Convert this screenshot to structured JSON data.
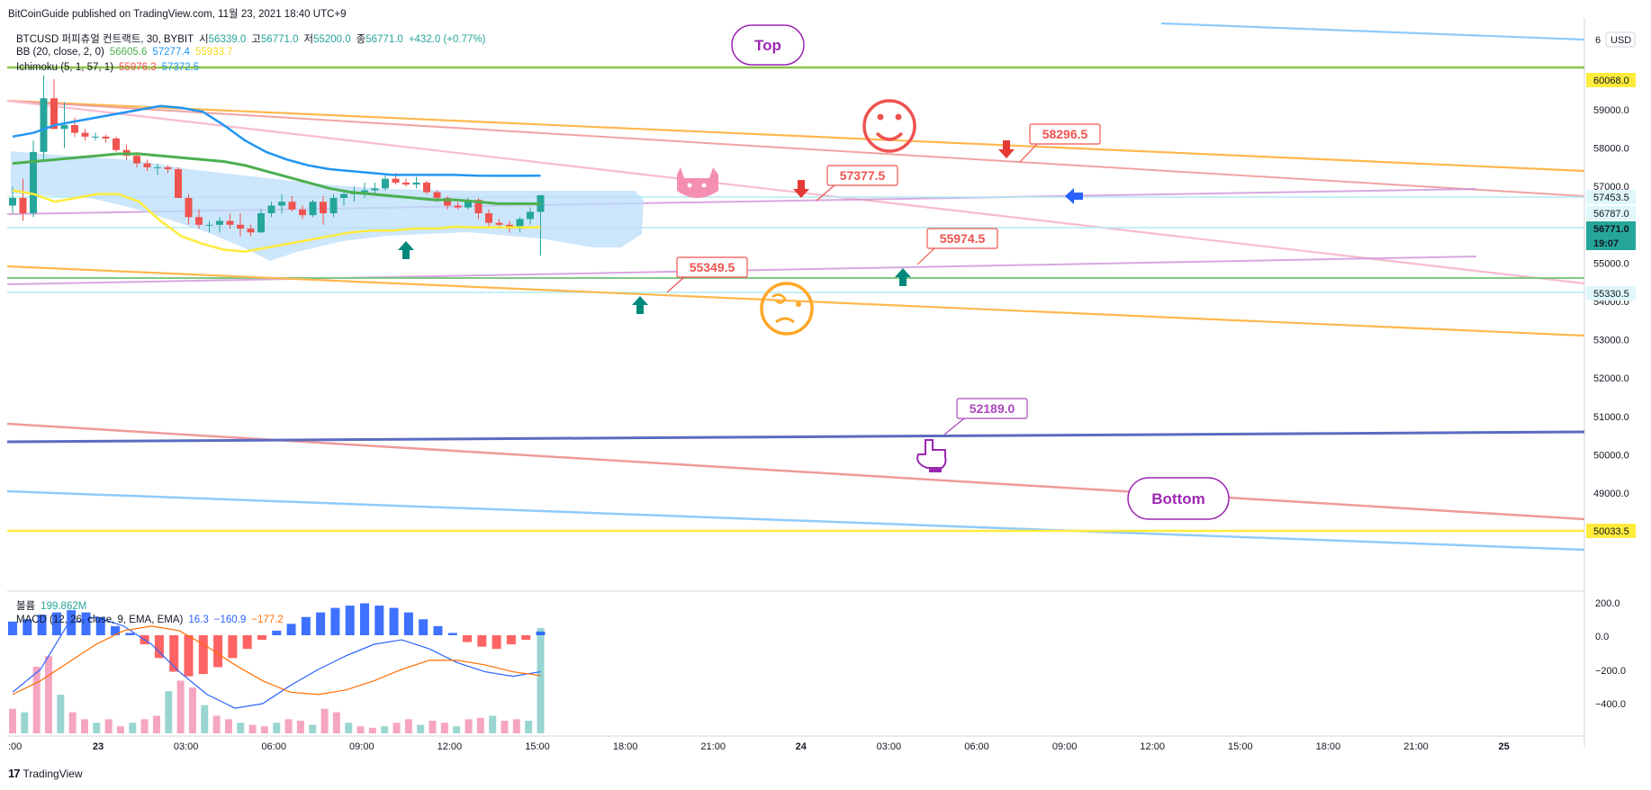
{
  "header": {
    "published": "BitCoinGuide published on TradingView.com, 11월 23, 2021 18:40 UTC+9",
    "symbol_line": "BTCUSD 퍼피츄얼 컨트랙트, 30, BYBIT",
    "ohlc": {
      "open_label": "시",
      "open": "56339.0",
      "high_label": "고",
      "high": "56771.0",
      "low_label": "저",
      "low": "55200.0",
      "close_label": "종",
      "close": "56771.0",
      "change": "+432.0 (+0.77%)"
    },
    "bb": {
      "label": "BB (20, close, 2, 0)",
      "basis": "56605.6",
      "upper": "57277.4",
      "lower": "55933.7"
    },
    "ichimoku": {
      "label": "Ichimoku (5, 1, 57, 1)",
      "v1": "55976.3",
      "v2": "57372.5"
    },
    "volume": {
      "label": "볼륨",
      "value": "199.862M"
    },
    "macd": {
      "label": "MACD (12, 26, close, 9, EMA, EMA)",
      "v1": "16.3",
      "v2": "−160.9",
      "v3": "−177.2"
    }
  },
  "currency": "USD",
  "currency_prefix": "6",
  "price_axis": {
    "ticks": [
      "59000.0",
      "58000.0",
      "57000.0",
      "56000.0",
      "55000.0",
      "54000.0",
      "53000.0",
      "52000.0",
      "51000.0",
      "50000.0",
      "49000.0"
    ],
    "tags": [
      {
        "text": "60068.0",
        "bg": "#ffeb3b",
        "fg": "#131722"
      },
      {
        "text": "57453.5",
        "bg": "#e0f7fa",
        "fg": "#131722"
      },
      {
        "text": "56787.0",
        "bg": "#e0f7fa",
        "fg": "#131722"
      },
      {
        "text": "56771.0",
        "bg": "#26a69a",
        "fg": "#ffffff"
      },
      {
        "text": "19:07",
        "bg": "#26a69a",
        "fg": "#ffffff"
      },
      {
        "text": "55330.5",
        "bg": "#e0f7fa",
        "fg": "#131722"
      },
      {
        "text": "50033.5",
        "bg": "#ffeb3b",
        "fg": "#131722"
      }
    ]
  },
  "macd_axis": {
    "ticks": [
      "200.0",
      "0.0",
      "−200.0",
      "−400.0"
    ]
  },
  "time_axis": {
    "ticks": [
      ":00",
      "23",
      "03:00",
      "06:00",
      "09:00",
      "12:00",
      "15:00",
      "18:00",
      "21:00",
      "24",
      "03:00",
      "06:00",
      "09:00",
      "12:00",
      "15:00",
      "18:00",
      "21:00",
      "25"
    ]
  },
  "callouts": {
    "top": "Top",
    "bottom": "Bottom",
    "labels": [
      "58296.5",
      "57377.5",
      "55974.5",
      "55349.5",
      "52189.0"
    ]
  },
  "footer": {
    "logo": "17",
    "brand": "TradingView"
  },
  "colors": {
    "up": "#26a69a",
    "down": "#ef5350",
    "bb_basis": "#4caf50",
    "bb_upper": "#2196f3",
    "bb_lower": "#ffeb3b",
    "cloud": "#bbdefb",
    "macd": "#2962ff",
    "signal": "#ff6d00"
  },
  "chart_data": {
    "type": "candlestick",
    "title": "BTCUSD 퍼피츄얼 컨트랙트, 30, BYBIT",
    "price_range": [
      48600,
      61000
    ],
    "candles": [
      [
        56500,
        57000,
        56300,
        56700
      ],
      [
        56700,
        57200,
        56100,
        56300
      ],
      [
        56300,
        58200,
        56200,
        57900
      ],
      [
        57900,
        59900,
        57700,
        59300
      ],
      [
        59300,
        59800,
        58500,
        58500
      ],
      [
        58500,
        59200,
        58000,
        58600
      ],
      [
        58600,
        58800,
        58300,
        58400
      ],
      [
        58400,
        58500,
        58200,
        58300
      ],
      [
        58300,
        58400,
        58200,
        58300
      ],
      [
        58300,
        58350,
        58150,
        58250
      ],
      [
        58250,
        58300,
        57900,
        57950
      ],
      [
        57950,
        58100,
        57700,
        57800
      ],
      [
        57800,
        57900,
        57500,
        57600
      ],
      [
        57600,
        57700,
        57400,
        57500
      ],
      [
        57500,
        57600,
        57300,
        57500
      ],
      [
        57500,
        57550,
        57350,
        57450
      ],
      [
        57450,
        57500,
        56700,
        56700
      ],
      [
        56700,
        56800,
        56000,
        56200
      ],
      [
        56200,
        56400,
        55900,
        56000
      ],
      [
        56000,
        56100,
        55800,
        56000
      ],
      [
        56000,
        56200,
        55800,
        56100
      ],
      [
        56100,
        56300,
        55900,
        56000
      ],
      [
        56000,
        56300,
        55700,
        55900
      ],
      [
        55900,
        56000,
        55700,
        55800
      ],
      [
        55800,
        56400,
        55800,
        56300
      ],
      [
        56300,
        56600,
        56200,
        56500
      ],
      [
        56500,
        56800,
        56300,
        56600
      ],
      [
        56600,
        56750,
        56350,
        56400
      ],
      [
        56400,
        56500,
        56150,
        56250
      ],
      [
        56250,
        56650,
        56200,
        56600
      ],
      [
        56600,
        56750,
        56000,
        56300
      ],
      [
        56300,
        56800,
        56200,
        56700
      ],
      [
        56700,
        56850,
        56500,
        56800
      ],
      [
        56800,
        57000,
        56600,
        56850
      ],
      [
        56850,
        57100,
        56700,
        56900
      ],
      [
        56900,
        57100,
        56800,
        56950
      ],
      [
        56950,
        57300,
        56900,
        57200
      ],
      [
        57200,
        57350,
        57050,
        57100
      ],
      [
        57100,
        57200,
        57000,
        57050
      ],
      [
        57050,
        57250,
        56950,
        57100
      ],
      [
        57100,
        57150,
        56800,
        56850
      ],
      [
        56850,
        56900,
        56600,
        56700
      ],
      [
        56700,
        56750,
        56400,
        56500
      ],
      [
        56500,
        56600,
        56400,
        56450
      ],
      [
        56450,
        56700,
        56400,
        56650
      ],
      [
        56650,
        56700,
        56150,
        56300
      ],
      [
        56300,
        56400,
        55900,
        56050
      ],
      [
        56050,
        56150,
        55900,
        56000
      ],
      [
        56000,
        56100,
        55800,
        55900
      ],
      [
        55900,
        56200,
        55800,
        56150
      ],
      [
        56150,
        56450,
        56000,
        56339
      ],
      [
        56339,
        56771,
        55200,
        56771
      ]
    ],
    "bb_basis": [
      57600,
      57650,
      57700,
      57750,
      57800,
      57850,
      57850,
      57800,
      57750,
      57700,
      57650,
      57550,
      57400,
      57250,
      57100,
      56950,
      56850,
      56800,
      56750,
      56700,
      56650,
      56650,
      56600,
      56550,
      56550,
      56550
    ],
    "bb_upper": [
      58300,
      58400,
      58600,
      58700,
      58800,
      58900,
      59000,
      59100,
      59050,
      58950,
      58600,
      58200,
      57900,
      57700,
      57550,
      57450,
      57400,
      57350,
      57300,
      57300,
      57300,
      57300,
      57280,
      57277,
      57277,
      57280
    ],
    "bb_lower": [
      56900,
      56800,
      56600,
      56700,
      56800,
      56800,
      56600,
      56100,
      55700,
      55500,
      55350,
      55300,
      55400,
      55500,
      55600,
      55700,
      55800,
      55850,
      55850,
      55900,
      55900,
      55950,
      55930,
      55934,
      55934,
      55934
    ],
    "macd_hist": [
      60,
      70,
      90,
      100,
      110,
      100,
      80,
      40,
      10,
      -40,
      -100,
      -160,
      -180,
      -170,
      -140,
      -100,
      -60,
      -20,
      20,
      50,
      80,
      100,
      120,
      130,
      140,
      130,
      120,
      100,
      70,
      40,
      10,
      -30,
      -50,
      -60,
      -40,
      -20,
      16
    ],
    "macd_line": [
      -250,
      -150,
      50,
      80,
      40,
      -40,
      -160,
      -260,
      -320,
      -300,
      -220,
      -150,
      -90,
      -40,
      -20,
      -60,
      -120,
      -160,
      -180,
      -160
    ],
    "signal_line": [
      -260,
      -200,
      -120,
      -40,
      20,
      40,
      20,
      -50,
      -130,
      -200,
      -250,
      -260,
      -240,
      -200,
      -150,
      -110,
      -110,
      -130,
      -160,
      -177
    ],
    "volume": [
      35,
      30,
      95,
      110,
      55,
      30,
      20,
      15,
      20,
      10,
      15,
      20,
      25,
      60,
      75,
      65,
      40,
      25,
      20,
      15,
      12,
      10,
      15,
      20,
      18,
      12,
      35,
      30,
      15,
      10,
      8,
      10,
      15,
      20,
      12,
      18,
      15,
      10,
      20,
      22,
      25,
      18,
      20,
      18,
      150
    ]
  }
}
